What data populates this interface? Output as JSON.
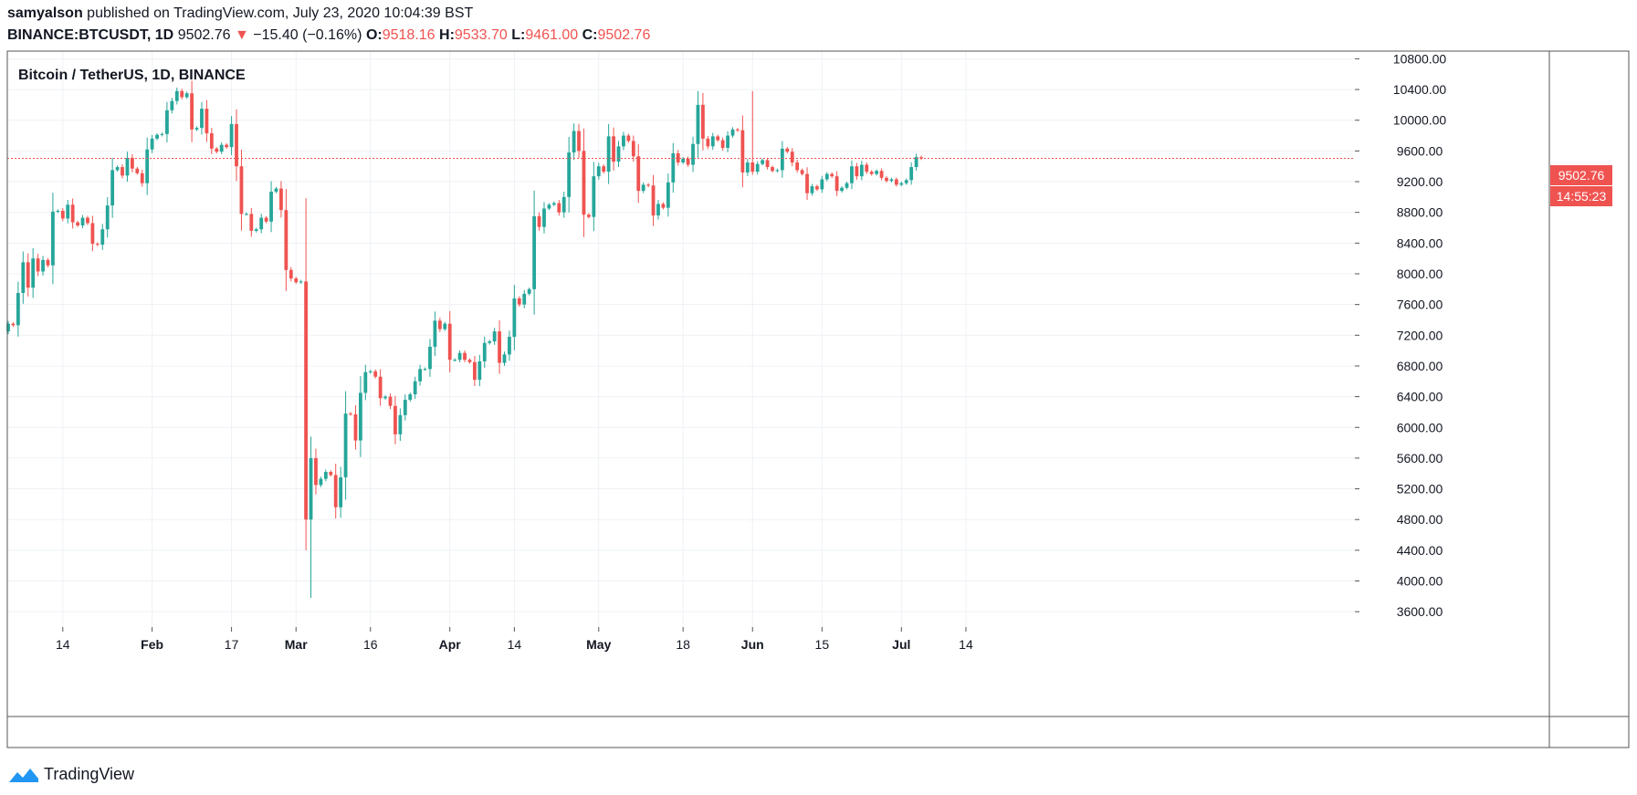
{
  "header": {
    "publisher": "samyalson",
    "published_text": "published on TradingView.com, July 23, 2020 10:04:39 BST",
    "symbol": "BINANCE:BTCUSDT, 1D",
    "last": "9502.76",
    "change": "−15.40 (−0.16%)",
    "open_label": "O:",
    "open": "9518.16",
    "high_label": "H:",
    "high": "9533.70",
    "low_label": "L:",
    "low": "9461.00",
    "close_label": "C:",
    "close": "9502.76"
  },
  "legend_title": "Bitcoin / TetherUS, 1D, BINANCE",
  "price_badge": "9502.76",
  "countdown_badge": "14:55:23",
  "brand": "TradingView",
  "colors": {
    "up": "#26a69a",
    "down": "#ef5350",
    "grid": "#eef1f5",
    "axis_text": "#131722"
  },
  "chart_data": {
    "type": "candlestick",
    "ylim": [
      3400,
      10900
    ],
    "y_ticks": [
      "10800.00",
      "10400.00",
      "10000.00",
      "9600.00",
      "9200.00",
      "8800.00",
      "8400.00",
      "8000.00",
      "7600.00",
      "7200.00",
      "6800.00",
      "6400.00",
      "6000.00",
      "5600.00",
      "5200.00",
      "4800.00",
      "4400.00",
      "4000.00",
      "3600.00"
    ],
    "x_ticks": [
      {
        "label": "14",
        "date": "2020-01-14"
      },
      {
        "label": "Feb",
        "date": "2020-02-01"
      },
      {
        "label": "17",
        "date": "2020-02-17"
      },
      {
        "label": "Mar",
        "date": "2020-03-01"
      },
      {
        "label": "16",
        "date": "2020-03-16"
      },
      {
        "label": "Apr",
        "date": "2020-04-01"
      },
      {
        "label": "14",
        "date": "2020-04-14"
      },
      {
        "label": "May",
        "date": "2020-05-01"
      },
      {
        "label": "18",
        "date": "2020-05-18"
      },
      {
        "label": "Jun",
        "date": "2020-06-01"
      },
      {
        "label": "15",
        "date": "2020-06-15"
      },
      {
        "label": "Jul",
        "date": "2020-07-01"
      },
      {
        "label": "14",
        "date": "2020-07-14"
      }
    ],
    "last_price": 9502.76,
    "series": {
      "start_date": "2020-01-03",
      "close": [
        7350,
        7330,
        7750,
        8150,
        7820,
        8200,
        8030,
        8180,
        8110,
        8810,
        8820,
        8720,
        8900,
        8670,
        8630,
        8730,
        8660,
        8390,
        8380,
        8580,
        8890,
        9350,
        9390,
        9280,
        9510,
        9370,
        9310,
        9180,
        9620,
        9760,
        9810,
        9820,
        10130,
        10250,
        10380,
        10300,
        10350,
        9880,
        9900,
        10150,
        9830,
        9630,
        9590,
        9680,
        9650,
        9950,
        9400,
        8780,
        8780,
        8560,
        8580,
        8730,
        8680,
        9070,
        9110,
        8830,
        8050,
        7940,
        7890,
        7900,
        4800,
        5600,
        5250,
        5330,
        5420,
        5380,
        4960,
        5350,
        6180,
        6170,
        5830,
        6450,
        6720,
        6730,
        6660,
        6380,
        6400,
        6280,
        5910,
        6160,
        6360,
        6430,
        6600,
        6760,
        6760,
        7050,
        7390,
        7280,
        7350,
        6880,
        6880,
        6970,
        6880,
        6850,
        6620,
        6860,
        7100,
        7120,
        7250,
        6840,
        6950,
        7180,
        7680,
        7600,
        7740,
        7800,
        8750,
        8610,
        8850,
        8900,
        8920,
        8800,
        9000,
        9580,
        9860,
        9600,
        8770,
        8740,
        9270,
        9400,
        9330,
        9790,
        9460,
        9660,
        9800,
        9730,
        9530,
        9080,
        9160,
        9150,
        8760,
        8910,
        8860,
        9190,
        9570,
        9450,
        9500,
        9420,
        9690,
        10200,
        9760,
        9660,
        9790,
        9740,
        9640,
        9800,
        9880,
        9870,
        9320,
        9450,
        9330,
        9430,
        9480,
        9390,
        9340,
        9350,
        9630,
        9590,
        9450,
        9350,
        9300,
        9050,
        9140,
        9100,
        9230,
        9300,
        9270,
        9080,
        9120,
        9180,
        9400,
        9270,
        9420,
        9330,
        9300,
        9340,
        9250,
        9210,
        9230,
        9160,
        9180,
        9220,
        9390,
        9520,
        9502.76
      ],
      "open": [
        7250,
        7350,
        7330,
        7750,
        8150,
        7820,
        8200,
        8030,
        8180,
        8110,
        8810,
        8820,
        8720,
        8900,
        8670,
        8630,
        8730,
        8660,
        8390,
        8380,
        8580,
        8890,
        9350,
        9390,
        9280,
        9510,
        9370,
        9310,
        9180,
        9620,
        9760,
        9810,
        9820,
        10130,
        10250,
        10380,
        10300,
        10350,
        9880,
        9900,
        10150,
        9830,
        9630,
        9590,
        9680,
        9650,
        9950,
        9400,
        8780,
        8780,
        8560,
        8580,
        8730,
        8680,
        9070,
        9110,
        8830,
        8050,
        7940,
        7890,
        7900,
        4800,
        5600,
        5250,
        5330,
        5420,
        5380,
        4960,
        5350,
        6180,
        6170,
        5830,
        6450,
        6720,
        6730,
        6660,
        6380,
        6400,
        6280,
        5910,
        6160,
        6360,
        6430,
        6600,
        6760,
        6760,
        7050,
        7390,
        7280,
        7350,
        6880,
        6880,
        6970,
        6880,
        6850,
        6620,
        6860,
        7100,
        7120,
        7250,
        6840,
        6950,
        7180,
        7680,
        7600,
        7740,
        7800,
        8750,
        8610,
        8850,
        8900,
        8920,
        8800,
        9000,
        9580,
        9860,
        9600,
        8770,
        8740,
        9270,
        9400,
        9330,
        9790,
        9460,
        9660,
        9800,
        9730,
        9530,
        9080,
        9160,
        9150,
        8760,
        8910,
        8860,
        9190,
        9570,
        9450,
        9500,
        9420,
        9690,
        10200,
        9760,
        9660,
        9790,
        9740,
        9640,
        9800,
        9880,
        9870,
        9320,
        9450,
        9330,
        9430,
        9480,
        9390,
        9340,
        9350,
        9630,
        9590,
        9450,
        9350,
        9300,
        9050,
        9140,
        9100,
        9230,
        9300,
        9270,
        9080,
        9120,
        9180,
        9400,
        9270,
        9420,
        9330,
        9300,
        9340,
        9250,
        9210,
        9230,
        9160,
        9180,
        9220,
        9390,
        9518.16
      ]
    },
    "extremes": {
      "min_low": 3780,
      "max_high": 10500
    }
  }
}
